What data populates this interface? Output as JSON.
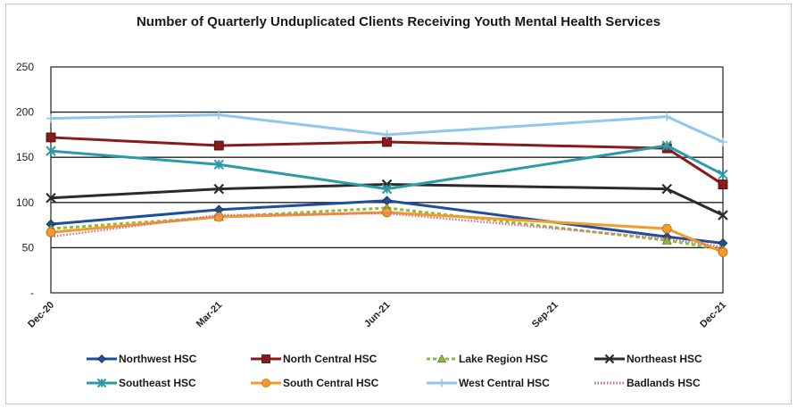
{
  "chart_data": {
    "type": "line",
    "title": "Number of Quarterly Unduplicated Clients Receiving Youth Mental Health Services",
    "xlabel": "",
    "ylabel": "",
    "categories": [
      "Dec-20",
      "Mar-21",
      "Jun-21",
      "Sep-21",
      "Dec-21"
    ],
    "x_positions": [
      0,
      3,
      6,
      9,
      12
    ],
    "x_range": [
      0,
      12
    ],
    "ylim": [
      0,
      250
    ],
    "yticks": [
      0,
      50,
      100,
      150,
      200,
      250
    ],
    "ytick_labels": [
      "-",
      "50",
      "100",
      "150",
      "200",
      "250"
    ],
    "grid": true,
    "legend_position": "bottom",
    "series": [
      {
        "name": "Northwest HSC",
        "color": "#1f4e9c",
        "marker": "diamond",
        "dash": "",
        "x": [
          0,
          3,
          6,
          11,
          12
        ],
        "values": [
          76,
          92,
          102,
          62,
          55
        ]
      },
      {
        "name": "North Central HSC",
        "color": "#8b1a1a",
        "marker": "square",
        "dash": "",
        "x": [
          0,
          3,
          6,
          11,
          12
        ],
        "values": [
          172,
          163,
          167,
          160,
          120
        ]
      },
      {
        "name": "Lake Region HSC",
        "color": "#8dbb3a",
        "marker": "triangle",
        "dash": "4,3",
        "x": [
          0,
          3,
          6,
          11,
          12
        ],
        "values": [
          71,
          84,
          94,
          58,
          48
        ]
      },
      {
        "name": "Northeast HSC",
        "color": "#2b2b2b",
        "marker": "x",
        "dash": "",
        "x": [
          0,
          3,
          6,
          11,
          12
        ],
        "values": [
          105,
          115,
          120,
          115,
          86
        ]
      },
      {
        "name": "Southeast HSC",
        "color": "#2e9aa8",
        "marker": "asterisk",
        "dash": "",
        "x": [
          0,
          3,
          6,
          11,
          12
        ],
        "values": [
          157,
          142,
          115,
          163,
          131
        ]
      },
      {
        "name": "South Central HSC",
        "color": "#f39b2b",
        "marker": "circle",
        "dash": "",
        "x": [
          0,
          3,
          6,
          11,
          12
        ],
        "values": [
          67,
          84,
          89,
          71,
          45
        ]
      },
      {
        "name": "West Central HSC",
        "color": "#8fc8ea",
        "marker": "plus",
        "dash": "",
        "x": [
          0,
          3,
          6,
          11,
          12
        ],
        "values": [
          193,
          197,
          175,
          195,
          167
        ]
      },
      {
        "name": "Badlands HSC",
        "color": "#d96a8a",
        "marker": "none",
        "dash": "1.5,2",
        "x": [
          0,
          3,
          6,
          11,
          12
        ],
        "values": [
          62,
          86,
          88,
          60,
          51
        ]
      }
    ]
  }
}
